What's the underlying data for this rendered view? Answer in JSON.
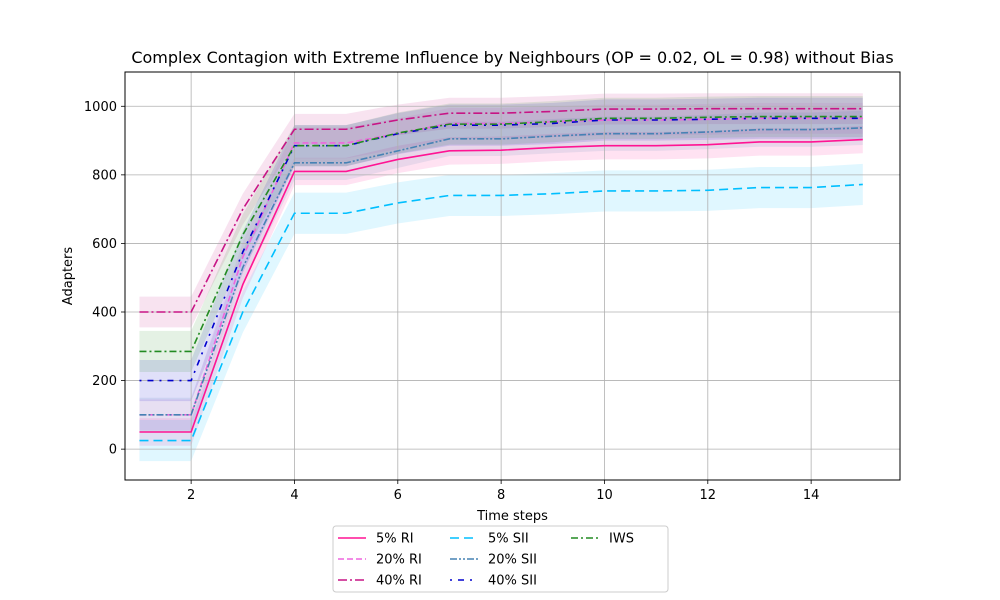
{
  "chart_data": {
    "type": "line",
    "title": "Complex Contagion with Extreme Influence by Neighbours (OP = 0.02, OL = 0.98) without Bias",
    "xlabel": "Time steps",
    "ylabel": "Adapters",
    "xlim": [
      0.72,
      15.72
    ],
    "ylim": [
      -90,
      1100
    ],
    "xticks": [
      2,
      4,
      6,
      8,
      10,
      12,
      14
    ],
    "yticks": [
      0,
      200,
      400,
      600,
      800,
      1000
    ],
    "grid": true,
    "legend_position": "bottom-center",
    "x": [
      1,
      2,
      3,
      4,
      5,
      6,
      7,
      8,
      9,
      10,
      11,
      12,
      13,
      14,
      15
    ],
    "series": [
      {
        "name": "5% RI",
        "color": "#ff1493",
        "dash": "solid",
        "values": [
          50,
          50,
          480,
          810,
          810,
          845,
          870,
          872,
          880,
          885,
          885,
          888,
          896,
          896,
          903
        ],
        "band": 40
      },
      {
        "name": "20% RI",
        "color": "#ee66dd",
        "dash": "6,3",
        "values": [
          100,
          100,
          560,
          893,
          893,
          920,
          950,
          950,
          955,
          960,
          960,
          962,
          965,
          965,
          965
        ],
        "band": 45
      },
      {
        "name": "40% RI",
        "color": "#c71585",
        "dash": "9,3,2,3",
        "values": [
          400,
          400,
          700,
          933,
          933,
          960,
          980,
          980,
          985,
          992,
          992,
          993,
          993,
          993,
          993
        ],
        "band": 45
      },
      {
        "name": "5% SII",
        "color": "#00bfff",
        "dash": "9,5",
        "values": [
          25,
          25,
          400,
          688,
          688,
          718,
          740,
          740,
          745,
          753,
          753,
          755,
          763,
          763,
          772
        ],
        "band": 60
      },
      {
        "name": "20% SII",
        "color": "#4682b4",
        "dash": "7,2,2,2,2,2",
        "values": [
          100,
          100,
          530,
          835,
          835,
          870,
          905,
          905,
          913,
          920,
          920,
          925,
          932,
          932,
          937
        ],
        "band": 50
      },
      {
        "name": "40% SII",
        "color": "#0000cd",
        "dash": "2,6,6,6",
        "values": [
          200,
          200,
          575,
          885,
          885,
          920,
          945,
          945,
          950,
          960,
          960,
          962,
          965,
          965,
          965
        ],
        "band": 60
      },
      {
        "name": "IWS",
        "color": "#228b22",
        "dash": "7,3,2,3",
        "values": [
          285,
          285,
          625,
          885,
          885,
          922,
          948,
          948,
          955,
          965,
          965,
          968,
          970,
          970,
          970
        ],
        "band": 60
      }
    ]
  }
}
